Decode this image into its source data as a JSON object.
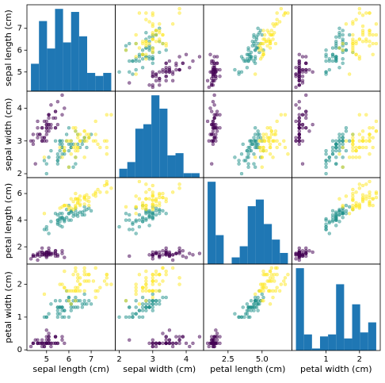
{
  "chart_data": {
    "type": "scatter_matrix",
    "hist_color": "#1f77b4",
    "colors": [
      "#440154",
      "#21918c",
      "#fde725"
    ],
    "species": [
      0,
      0,
      0,
      0,
      0,
      0,
      0,
      0,
      0,
      0,
      0,
      0,
      0,
      0,
      0,
      0,
      0,
      0,
      0,
      0,
      0,
      0,
      0,
      0,
      0,
      0,
      0,
      0,
      0,
      0,
      0,
      0,
      0,
      0,
      0,
      0,
      0,
      0,
      0,
      0,
      0,
      0,
      0,
      0,
      0,
      0,
      0,
      0,
      0,
      0,
      1,
      1,
      1,
      1,
      1,
      1,
      1,
      1,
      1,
      1,
      1,
      1,
      1,
      1,
      1,
      1,
      1,
      1,
      1,
      1,
      1,
      1,
      1,
      1,
      1,
      1,
      1,
      1,
      1,
      1,
      1,
      1,
      1,
      1,
      1,
      1,
      1,
      1,
      1,
      1,
      1,
      1,
      1,
      1,
      1,
      1,
      1,
      1,
      1,
      1,
      2,
      2,
      2,
      2,
      2,
      2,
      2,
      2,
      2,
      2,
      2,
      2,
      2,
      2,
      2,
      2,
      2,
      2,
      2,
      2,
      2,
      2,
      2,
      2,
      2,
      2,
      2,
      2,
      2,
      2,
      2,
      2,
      2,
      2,
      2,
      2,
      2,
      2,
      2,
      2,
      2,
      2,
      2,
      2,
      2,
      2,
      2,
      2,
      2,
      2
    ],
    "variables": [
      {
        "name": "sepal length (cm)",
        "lim": [
          4.12,
          8.08
        ],
        "yticks": [
          5,
          6,
          7
        ],
        "xticks": [
          5,
          6,
          7
        ],
        "hist_bins": [
          4.3,
          4.66,
          5.02,
          5.38,
          5.74,
          6.1,
          6.46,
          6.82,
          7.18,
          7.54,
          7.9
        ],
        "hist_counts": [
          9,
          23,
          14,
          27,
          16,
          26,
          18,
          6,
          5,
          6
        ],
        "values": [
          5.1,
          4.9,
          4.7,
          4.6,
          5.0,
          5.4,
          4.6,
          5.0,
          4.4,
          4.9,
          5.4,
          4.8,
          4.8,
          4.3,
          5.8,
          5.7,
          5.4,
          5.1,
          5.7,
          5.1,
          5.4,
          5.1,
          4.6,
          5.1,
          4.8,
          5.0,
          5.0,
          5.2,
          5.2,
          4.7,
          4.8,
          5.4,
          5.2,
          5.5,
          4.9,
          5.0,
          5.5,
          4.9,
          4.4,
          5.1,
          5.0,
          4.5,
          4.4,
          5.0,
          5.1,
          4.8,
          5.1,
          4.6,
          5.3,
          5.0,
          7.0,
          6.4,
          6.9,
          5.5,
          6.5,
          5.7,
          6.3,
          4.9,
          6.6,
          5.2,
          5.0,
          5.9,
          6.0,
          6.1,
          5.6,
          6.7,
          5.6,
          5.8,
          6.2,
          5.6,
          5.9,
          6.1,
          6.3,
          6.1,
          6.4,
          6.6,
          6.8,
          6.7,
          6.0,
          5.7,
          5.5,
          5.5,
          5.8,
          6.0,
          5.4,
          6.0,
          6.7,
          6.3,
          5.6,
          5.5,
          5.5,
          6.1,
          5.8,
          5.0,
          5.6,
          5.7,
          5.7,
          6.2,
          5.1,
          5.7,
          6.3,
          5.8,
          7.1,
          6.3,
          6.5,
          7.6,
          4.9,
          7.3,
          6.7,
          7.2,
          6.5,
          6.4,
          6.8,
          5.7,
          5.8,
          6.4,
          6.5,
          7.7,
          7.7,
          6.0,
          6.9,
          5.6,
          7.7,
          6.3,
          6.7,
          7.2,
          6.2,
          6.1,
          6.4,
          7.2,
          7.4,
          7.9,
          6.4,
          6.3,
          6.1,
          7.7,
          6.3,
          6.4,
          6.0,
          6.9,
          6.7,
          6.9,
          5.8,
          6.8,
          6.7,
          6.7,
          6.3,
          6.5,
          6.2,
          5.9
        ]
      },
      {
        "name": "sepal width (cm)",
        "lim": [
          1.88,
          4.52
        ],
        "yticks": [
          2,
          3,
          4
        ],
        "xticks": [
          2,
          3,
          4
        ],
        "hist_bins": [
          2.0,
          2.24,
          2.48,
          2.72,
          2.96,
          3.2,
          3.44,
          3.68,
          3.92,
          4.16,
          4.4
        ],
        "hist_counts": [
          4,
          7,
          22,
          24,
          37,
          31,
          10,
          11,
          2,
          2
        ],
        "values": [
          3.5,
          3.0,
          3.2,
          3.1,
          3.6,
          3.9,
          3.4,
          3.4,
          2.9,
          3.1,
          3.7,
          3.4,
          3.0,
          3.0,
          4.0,
          4.4,
          3.9,
          3.5,
          3.8,
          3.8,
          3.4,
          3.7,
          3.6,
          3.3,
          3.4,
          3.0,
          3.4,
          3.5,
          3.4,
          3.2,
          3.1,
          3.4,
          4.1,
          4.2,
          3.1,
          3.2,
          3.5,
          3.6,
          3.0,
          3.4,
          3.5,
          2.3,
          3.2,
          3.5,
          3.8,
          3.0,
          3.8,
          3.2,
          3.7,
          3.3,
          3.2,
          3.2,
          3.1,
          2.3,
          2.8,
          2.8,
          3.3,
          2.4,
          2.9,
          2.7,
          2.0,
          3.0,
          2.2,
          2.9,
          2.9,
          3.1,
          3.0,
          2.7,
          2.2,
          2.5,
          3.2,
          2.8,
          2.5,
          2.8,
          2.9,
          3.0,
          2.8,
          3.0,
          2.9,
          2.6,
          2.4,
          2.4,
          2.7,
          2.7,
          3.0,
          3.4,
          3.1,
          2.3,
          3.0,
          2.5,
          2.6,
          3.0,
          2.6,
          2.3,
          2.7,
          3.0,
          2.9,
          2.9,
          2.5,
          2.8,
          3.3,
          2.7,
          3.0,
          2.9,
          3.0,
          3.0,
          2.5,
          2.9,
          2.5,
          3.6,
          3.2,
          2.7,
          3.0,
          2.5,
          2.8,
          3.2,
          3.0,
          3.8,
          2.6,
          2.2,
          3.2,
          2.8,
          2.8,
          2.7,
          3.3,
          3.2,
          2.8,
          3.0,
          2.8,
          3.0,
          2.8,
          3.8,
          2.8,
          2.8,
          2.6,
          3.0,
          3.4,
          3.1,
          3.0,
          3.1,
          3.1,
          3.1,
          2.7,
          3.2,
          3.3,
          3.0,
          2.5,
          3.0,
          3.4,
          3.0
        ]
      },
      {
        "name": "petal length (cm)",
        "lim": [
          0.705,
          7.195
        ],
        "yticks": [
          2,
          4,
          6
        ],
        "xticks": [
          {
            "value": 2.5,
            "label": "2.5"
          },
          {
            "value": 5,
            "label": "5.0"
          }
        ],
        "hist_bins": [
          1.0,
          1.59,
          2.18,
          2.77,
          3.36,
          3.95,
          4.54,
          5.13,
          5.72,
          6.31,
          6.9
        ],
        "hist_counts": [
          37,
          13,
          0,
          3,
          8,
          26,
          29,
          18,
          11,
          5
        ],
        "values": [
          1.4,
          1.4,
          1.3,
          1.5,
          1.4,
          1.7,
          1.4,
          1.5,
          1.4,
          1.5,
          1.5,
          1.6,
          1.4,
          1.1,
          1.2,
          1.5,
          1.3,
          1.4,
          1.7,
          1.5,
          1.7,
          1.5,
          1.0,
          1.7,
          1.9,
          1.6,
          1.6,
          1.5,
          1.4,
          1.6,
          1.6,
          1.5,
          1.5,
          1.4,
          1.5,
          1.2,
          1.3,
          1.4,
          1.3,
          1.5,
          1.3,
          1.3,
          1.3,
          1.6,
          1.9,
          1.4,
          1.6,
          1.4,
          1.5,
          1.4,
          4.7,
          4.5,
          4.9,
          4.0,
          4.6,
          4.5,
          4.7,
          3.3,
          4.6,
          3.9,
          3.5,
          4.2,
          4.0,
          4.7,
          3.6,
          4.4,
          4.5,
          4.1,
          4.5,
          3.9,
          4.8,
          4.0,
          4.9,
          4.7,
          4.3,
          4.4,
          4.8,
          5.0,
          4.5,
          3.5,
          3.8,
          3.7,
          3.9,
          5.1,
          4.5,
          4.5,
          4.7,
          4.4,
          4.1,
          4.0,
          4.4,
          4.6,
          4.0,
          3.3,
          4.2,
          4.2,
          4.2,
          4.3,
          3.0,
          4.1,
          6.0,
          5.1,
          5.9,
          5.6,
          5.8,
          6.6,
          4.5,
          6.3,
          5.8,
          6.1,
          5.1,
          5.3,
          5.5,
          5.0,
          5.1,
          5.3,
          5.5,
          6.7,
          6.9,
          5.0,
          5.7,
          4.9,
          6.7,
          4.9,
          5.7,
          6.0,
          4.8,
          4.9,
          5.6,
          5.8,
          6.1,
          6.4,
          5.6,
          5.1,
          5.6,
          6.1,
          5.6,
          5.5,
          4.8,
          5.4,
          5.6,
          5.1,
          5.1,
          5.9,
          5.7,
          5.2,
          5.0,
          5.2,
          5.4,
          5.1
        ]
      },
      {
        "name": "petal width (cm)",
        "lim": [
          -0.02,
          2.62
        ],
        "yticks": [
          0,
          1,
          2
        ],
        "xticks": [
          1,
          2
        ],
        "hist_bins": [
          0.1,
          0.34,
          0.58,
          0.82,
          1.06,
          1.3,
          1.54,
          1.78,
          2.02,
          2.26,
          2.5
        ],
        "hist_counts": [
          41,
          8,
          1,
          7,
          8,
          33,
          6,
          23,
          9,
          14
        ],
        "values": [
          0.2,
          0.2,
          0.2,
          0.2,
          0.2,
          0.4,
          0.3,
          0.2,
          0.2,
          0.1,
          0.2,
          0.2,
          0.1,
          0.1,
          0.2,
          0.4,
          0.4,
          0.3,
          0.3,
          0.3,
          0.2,
          0.4,
          0.2,
          0.5,
          0.2,
          0.2,
          0.4,
          0.2,
          0.2,
          0.2,
          0.2,
          0.4,
          0.1,
          0.2,
          0.2,
          0.2,
          0.2,
          0.1,
          0.2,
          0.2,
          0.3,
          0.3,
          0.2,
          0.6,
          0.4,
          0.3,
          0.2,
          0.2,
          0.2,
          0.2,
          1.4,
          1.5,
          1.5,
          1.3,
          1.5,
          1.3,
          1.6,
          1.0,
          1.3,
          1.4,
          1.0,
          1.5,
          1.0,
          1.4,
          1.3,
          1.4,
          1.5,
          1.0,
          1.5,
          1.1,
          1.8,
          1.3,
          1.5,
          1.2,
          1.3,
          1.4,
          1.4,
          1.7,
          1.5,
          1.0,
          1.1,
          1.0,
          1.2,
          1.6,
          1.5,
          1.6,
          1.5,
          1.3,
          1.3,
          1.3,
          1.2,
          1.4,
          1.2,
          1.0,
          1.3,
          1.2,
          1.3,
          1.3,
          1.1,
          1.3,
          2.5,
          1.9,
          2.1,
          1.8,
          2.2,
          2.1,
          1.7,
          1.8,
          1.8,
          2.5,
          2.0,
          1.9,
          2.1,
          2.0,
          2.4,
          2.3,
          1.8,
          2.2,
          2.3,
          1.5,
          2.3,
          2.0,
          2.0,
          1.8,
          2.1,
          1.8,
          1.8,
          1.8,
          2.1,
          1.6,
          1.9,
          2.0,
          2.2,
          1.5,
          1.4,
          2.3,
          2.4,
          1.8,
          1.8,
          2.1,
          2.4,
          2.3,
          1.9,
          2.3,
          2.5,
          2.3,
          1.9,
          2.0,
          2.3,
          1.8
        ]
      }
    ]
  }
}
